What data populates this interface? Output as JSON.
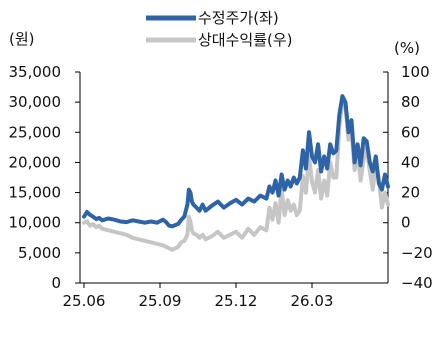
{
  "chart_data": {
    "type": "line",
    "unit_left": "(원)",
    "unit_right": "(%)",
    "legend": [
      {
        "label": "수정주가(좌)",
        "color": "#2e64a6"
      },
      {
        "label": "상대수익률(우)",
        "color": "#c6c6c6"
      }
    ],
    "x_ticks": [
      "25.06",
      "25.09",
      "25.12",
      "26.03"
    ],
    "y_left": {
      "ticks": [
        "0",
        "5,000",
        "10,000",
        "15,000",
        "20,000",
        "25,000",
        "30,000",
        "35,000"
      ],
      "range": [
        0,
        35000
      ]
    },
    "y_right": {
      "ticks": [
        "-40",
        "-20",
        "0",
        "20",
        "40",
        "60",
        "80",
        "100"
      ],
      "range": [
        -40,
        100
      ]
    },
    "series": [
      {
        "name": "수정주가(좌)",
        "axis": "left",
        "color": "#2e64a6",
        "x": [
          0,
          0.01,
          0.02,
          0.03,
          0.04,
          0.05,
          0.06,
          0.08,
          0.1,
          0.12,
          0.14,
          0.16,
          0.18,
          0.2,
          0.22,
          0.24,
          0.26,
          0.27,
          0.28,
          0.29,
          0.3,
          0.31,
          0.32,
          0.33,
          0.34,
          0.345,
          0.35,
          0.355,
          0.36,
          0.37,
          0.38,
          0.39,
          0.4,
          0.42,
          0.44,
          0.46,
          0.48,
          0.5,
          0.52,
          0.54,
          0.56,
          0.58,
          0.6,
          0.61,
          0.62,
          0.63,
          0.64,
          0.65,
          0.66,
          0.67,
          0.68,
          0.69,
          0.7,
          0.71,
          0.72,
          0.73,
          0.74,
          0.75,
          0.76,
          0.77,
          0.78,
          0.79,
          0.8,
          0.81,
          0.82,
          0.83,
          0.84,
          0.85,
          0.86,
          0.87,
          0.88,
          0.89,
          0.9,
          0.91,
          0.92,
          0.93,
          0.94,
          0.95,
          0.96,
          0.97,
          0.98,
          0.99,
          1.0
        ],
        "y": [
          11000,
          11800,
          11300,
          11000,
          10600,
          10800,
          10400,
          10700,
          10500,
          10200,
          10100,
          10400,
          10200,
          10000,
          10200,
          10000,
          10500,
          10100,
          9500,
          9400,
          9600,
          9800,
          10500,
          11000,
          13000,
          15500,
          15000,
          13500,
          13000,
          12500,
          12000,
          13000,
          12000,
          12800,
          13500,
          12500,
          13200,
          13800,
          13000,
          14000,
          13500,
          14500,
          14000,
          16000,
          15000,
          17000,
          14500,
          18000,
          15500,
          17000,
          16000,
          17500,
          16500,
          17500,
          22000,
          19000,
          25000,
          21000,
          20000,
          23000,
          18500,
          21000,
          19000,
          23000,
          21500,
          22000,
          28000,
          31000,
          30000,
          25000,
          27000,
          20000,
          23000,
          19500,
          24000,
          23500,
          20000,
          18500,
          21000,
          16500,
          15500,
          18000,
          16000
        ]
      },
      {
        "name": "상대수익률(우)",
        "axis": "right",
        "color": "#c6c6c6",
        "x": [
          0,
          0.01,
          0.02,
          0.03,
          0.04,
          0.05,
          0.06,
          0.08,
          0.1,
          0.12,
          0.14,
          0.16,
          0.18,
          0.2,
          0.22,
          0.24,
          0.26,
          0.27,
          0.28,
          0.29,
          0.3,
          0.31,
          0.32,
          0.33,
          0.34,
          0.345,
          0.35,
          0.355,
          0.36,
          0.37,
          0.38,
          0.39,
          0.4,
          0.42,
          0.44,
          0.46,
          0.48,
          0.5,
          0.52,
          0.54,
          0.56,
          0.58,
          0.6,
          0.61,
          0.62,
          0.63,
          0.64,
          0.65,
          0.66,
          0.67,
          0.68,
          0.69,
          0.7,
          0.71,
          0.72,
          0.73,
          0.74,
          0.75,
          0.76,
          0.77,
          0.78,
          0.79,
          0.8,
          0.81,
          0.82,
          0.83,
          0.84,
          0.85,
          0.86,
          0.87,
          0.88,
          0.89,
          0.9,
          0.91,
          0.92,
          0.93,
          0.94,
          0.95,
          0.96,
          0.97,
          0.98,
          0.99,
          1.0
        ],
        "y": [
          0,
          1,
          -2,
          -1,
          -3,
          -2,
          -4,
          -5,
          -6,
          -7,
          -8,
          -10,
          -11,
          -12,
          -13,
          -14,
          -15,
          -16,
          -17,
          -18,
          -17,
          -16,
          -13,
          -12,
          -8,
          4,
          1,
          -5,
          -7,
          -8,
          -10,
          -8,
          -11,
          -9,
          -6,
          -10,
          -8,
          -6,
          -10,
          -4,
          -8,
          -3,
          -5,
          10,
          2,
          13,
          0,
          22,
          5,
          15,
          8,
          12,
          5,
          8,
          31,
          20,
          44,
          27,
          20,
          35,
          16,
          28,
          18,
          40,
          30,
          30,
          64,
          80,
          78,
          55,
          60,
          35,
          47,
          28,
          42,
          50,
          34,
          22,
          40,
          28,
          10,
          20,
          12
        ]
      }
    ]
  }
}
